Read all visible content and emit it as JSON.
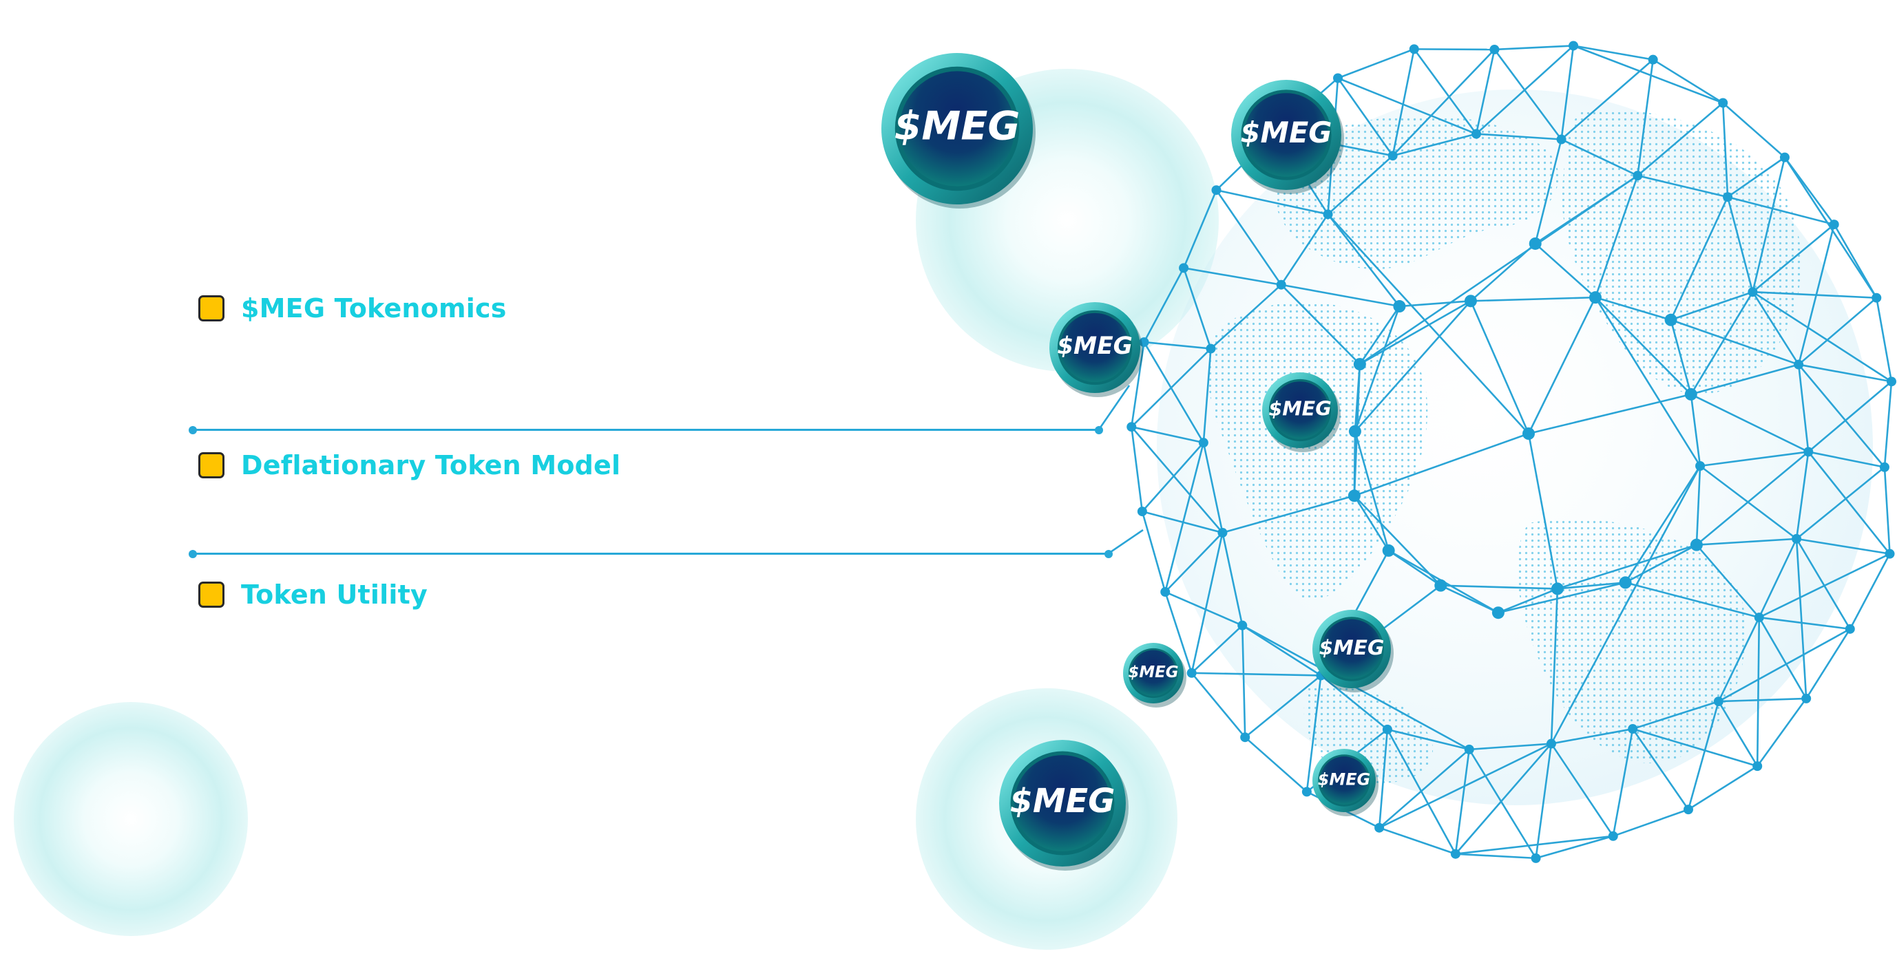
{
  "colors": {
    "accent_text": "#17cfe0",
    "bullet": "#ffc400",
    "line": "#27a8d8",
    "globe_stroke": "#2aa4d6",
    "coin_dark": "#0c2a6b",
    "coin_teal": "#0d7a7a"
  },
  "menu": {
    "items": [
      {
        "label": "$MEG Tokenomics"
      },
      {
        "label": "Deflationary Token Model"
      },
      {
        "label": "Token Utility"
      }
    ]
  },
  "coins": {
    "text": "$MEG"
  },
  "icons": {
    "bullet": "square-bullet-icon",
    "globe": "network-globe-icon",
    "coin": "meg-coin-icon"
  }
}
